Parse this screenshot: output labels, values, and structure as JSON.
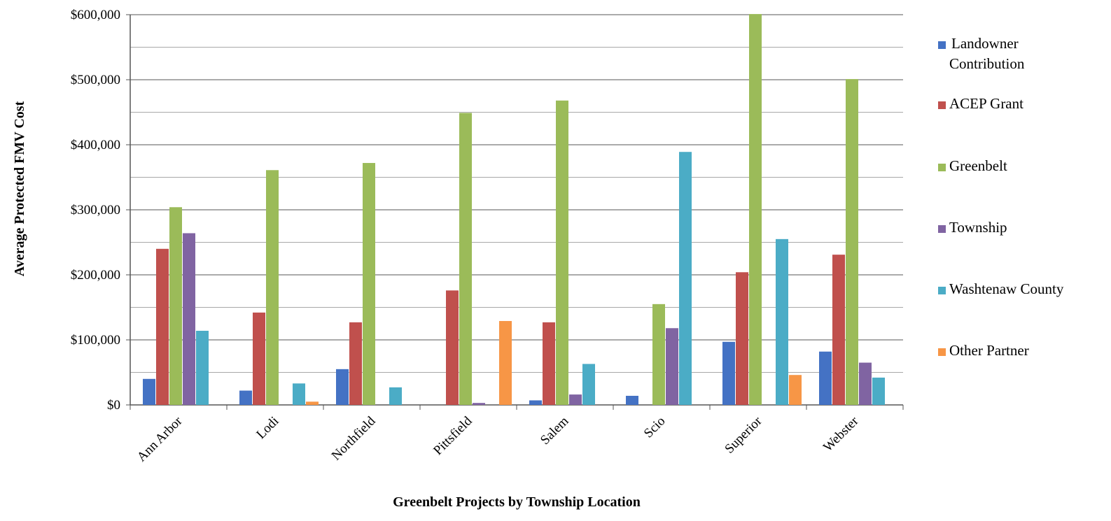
{
  "chart_data": {
    "type": "bar",
    "title": "",
    "xlabel": "Greenbelt Projects by Township Location",
    "ylabel": "Average Protected FMV Cost",
    "ylim": [
      0,
      600000
    ],
    "y_ticks": [
      "$0",
      "$100,000",
      "$200,000",
      "$300,000",
      "$400,000",
      "$500,000",
      "$600,000"
    ],
    "grid": true,
    "legend_position": "right",
    "categories": [
      "Ann Arbor",
      "Lodi",
      "Northfield",
      "Pittsfield",
      "Salem",
      "Scio",
      "Superior",
      "Webster"
    ],
    "series": [
      {
        "name_lines": [
          "Landowner",
          "Contribution"
        ],
        "color": "#4472c4",
        "values": [
          40000,
          22000,
          55000,
          0,
          7000,
          14000,
          97000,
          82000
        ]
      },
      {
        "name_lines": [
          "ACEP Grant"
        ],
        "color": "#c0504d",
        "values": [
          240000,
          142000,
          127000,
          176000,
          127000,
          0,
          204000,
          231000
        ]
      },
      {
        "name_lines": [
          "Greenbelt"
        ],
        "color": "#9bbb59",
        "values": [
          304000,
          361000,
          372000,
          449000,
          468000,
          155000,
          601000,
          501000
        ]
      },
      {
        "name_lines": [
          "Township"
        ],
        "color": "#8064a2",
        "values": [
          264000,
          0,
          0,
          3000,
          16000,
          118000,
          0,
          65000
        ]
      },
      {
        "name_lines": [
          "Washtenaw County"
        ],
        "color": "#4bacc6",
        "values": [
          114000,
          33000,
          27000,
          0,
          63000,
          389000,
          255000,
          42000
        ]
      },
      {
        "name_lines": [
          "Other Partner"
        ],
        "color": "#f79646",
        "values": [
          0,
          5000,
          0,
          129000,
          0,
          0,
          46000,
          0
        ]
      }
    ]
  }
}
